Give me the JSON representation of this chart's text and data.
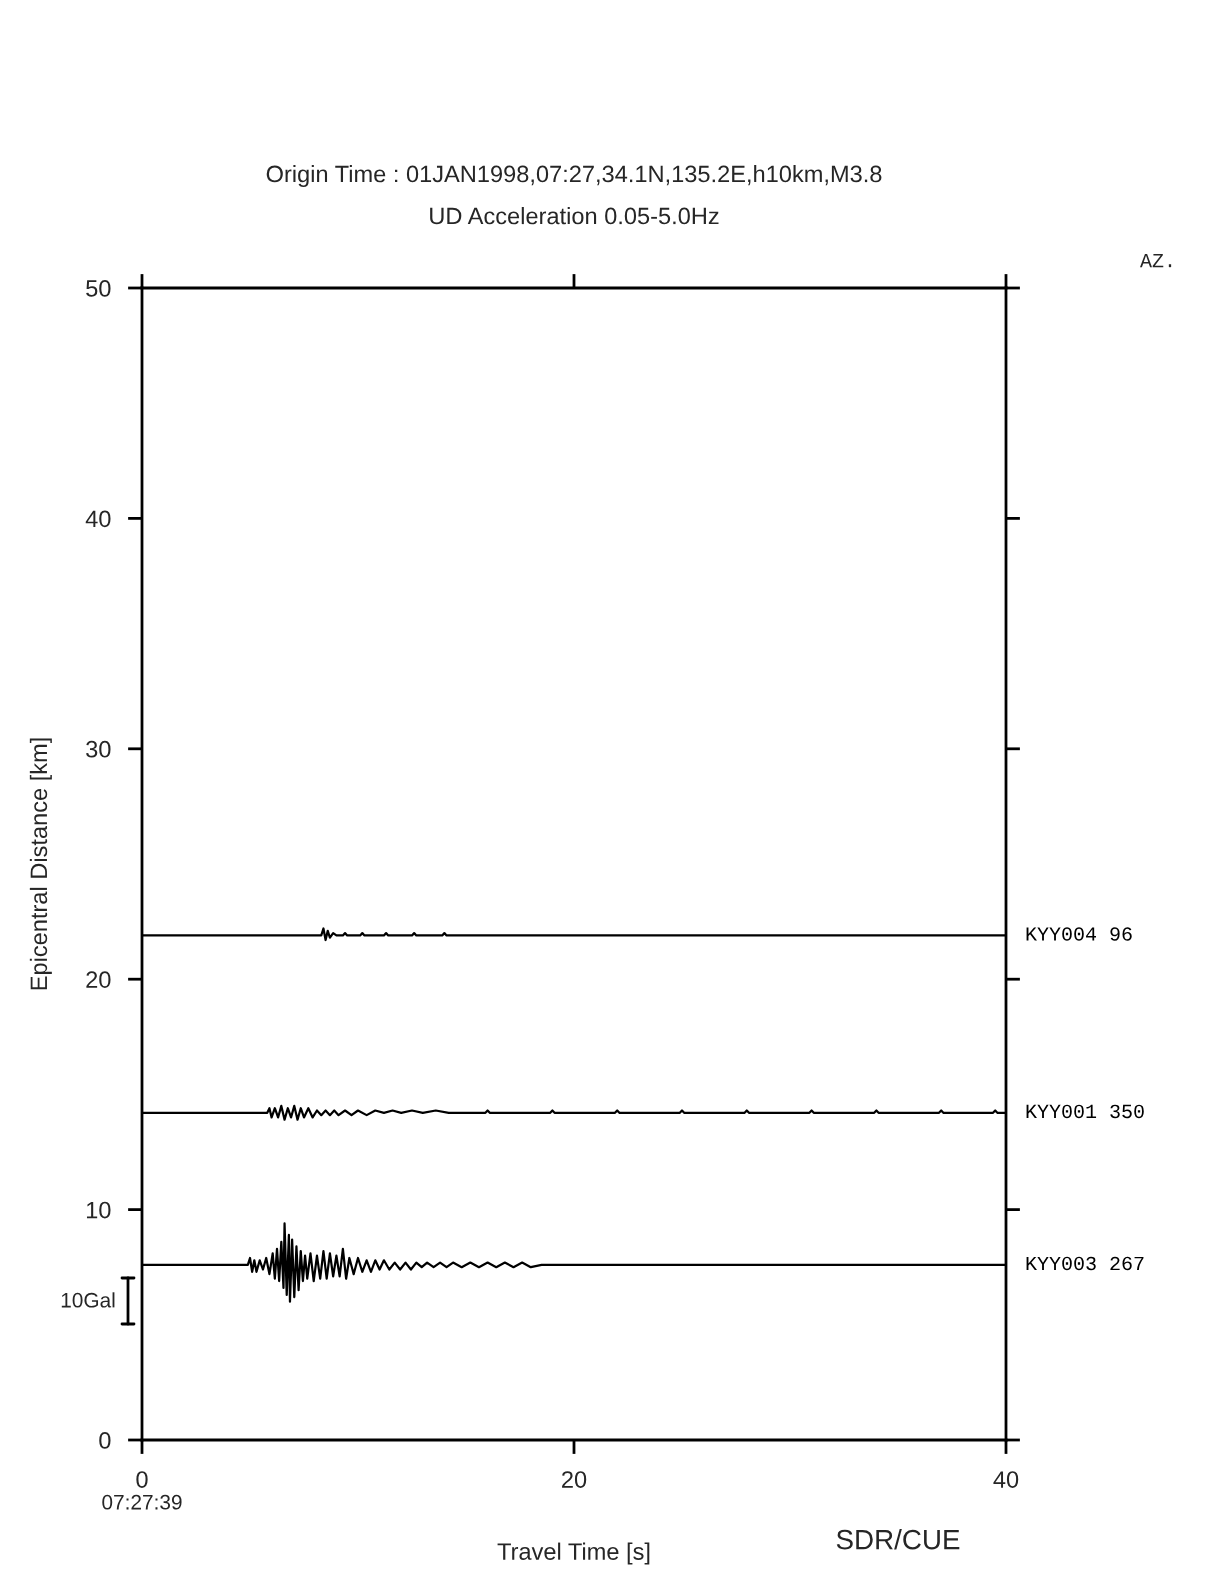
{
  "chart_data": {
    "type": "line",
    "title": "Origin Time : 01JAN1998,07:27,34.1N,135.2E,h10km,M3.8",
    "subtitle": "UD Acceleration 0.05-5.0Hz",
    "xlabel": "Travel Time [s]",
    "ylabel": "Epicentral Distance [km]",
    "xlim": [
      0,
      40
    ],
    "xticks": [
      0,
      20,
      40
    ],
    "ylim": [
      0,
      50
    ],
    "yticks": [
      0,
      10,
      20,
      30,
      40,
      50
    ],
    "annotations": [
      "07:27:39",
      "10Gal",
      "AZ.",
      "SDR/CUE"
    ],
    "series": [
      {
        "name": "KYY004 96",
        "color": "#000000",
        "x": [
          0,
          8.3,
          8.4,
          8.5,
          8.6,
          8.7,
          8.85,
          9.0,
          9.3,
          9.4,
          9.5,
          10.1,
          10.2,
          10.3,
          11.2,
          11.3,
          11.4,
          12.5,
          12.6,
          12.7,
          13.9,
          14.0,
          14.1,
          40
        ],
        "values": [
          21.9,
          21.9,
          22.2,
          21.7,
          22.1,
          21.8,
          22.0,
          21.9,
          21.9,
          22.0,
          21.9,
          21.9,
          22.0,
          21.9,
          21.9,
          22.0,
          21.9,
          21.9,
          22.0,
          21.9,
          21.9,
          22.0,
          21.9,
          21.9
        ]
      },
      {
        "name": "KYY001 350",
        "color": "#000000",
        "x": [
          0,
          5.8,
          5.9,
          6.0,
          6.15,
          6.3,
          6.45,
          6.6,
          6.75,
          6.9,
          7.05,
          7.2,
          7.35,
          7.5,
          7.7,
          7.9,
          8.1,
          8.3,
          8.5,
          8.7,
          8.9,
          9.1,
          9.4,
          9.7,
          10.0,
          10.4,
          10.8,
          11.2,
          11.6,
          12.0,
          12.5,
          13.0,
          13.6,
          14.2,
          15.9,
          16.0,
          16.1,
          18.9,
          19.0,
          19.1,
          21.9,
          22.0,
          22.1,
          24.9,
          25.0,
          25.1,
          27.9,
          28.0,
          28.1,
          30.9,
          31.0,
          31.1,
          33.9,
          34.0,
          34.1,
          36.9,
          37.0,
          37.1,
          39.4,
          39.5,
          39.6,
          40
        ],
        "values": [
          14.2,
          14.2,
          14.4,
          14.0,
          14.4,
          14.0,
          14.5,
          13.9,
          14.4,
          14.0,
          14.5,
          13.9,
          14.4,
          14.0,
          14.4,
          14.0,
          14.3,
          14.1,
          14.3,
          14.1,
          14.3,
          14.1,
          14.3,
          14.1,
          14.3,
          14.1,
          14.3,
          14.2,
          14.3,
          14.2,
          14.3,
          14.2,
          14.3,
          14.2,
          14.2,
          14.3,
          14.2,
          14.2,
          14.3,
          14.2,
          14.2,
          14.3,
          14.2,
          14.2,
          14.3,
          14.2,
          14.2,
          14.3,
          14.2,
          14.2,
          14.3,
          14.2,
          14.2,
          14.3,
          14.2,
          14.2,
          14.3,
          14.2,
          14.2,
          14.3,
          14.2,
          14.2
        ]
      },
      {
        "name": "KYY003 267",
        "color": "#000000",
        "x": [
          0,
          4.9,
          5.0,
          5.1,
          5.2,
          5.3,
          5.45,
          5.6,
          5.75,
          5.9,
          6.05,
          6.15,
          6.25,
          6.35,
          6.45,
          6.55,
          6.6,
          6.7,
          6.8,
          6.85,
          6.95,
          7.05,
          7.15,
          7.25,
          7.35,
          7.45,
          7.55,
          7.65,
          7.8,
          7.95,
          8.1,
          8.25,
          8.4,
          8.55,
          8.7,
          8.85,
          9.0,
          9.15,
          9.3,
          9.45,
          9.6,
          9.8,
          10.0,
          10.2,
          10.4,
          10.6,
          10.8,
          11.0,
          11.2,
          11.45,
          11.7,
          11.95,
          12.2,
          12.45,
          12.7,
          12.95,
          13.2,
          13.5,
          13.8,
          14.1,
          14.4,
          14.8,
          15.2,
          15.6,
          16.0,
          16.4,
          16.8,
          17.2,
          17.6,
          18.0,
          18.5,
          18.6,
          40
        ],
        "values": [
          7.6,
          7.6,
          7.9,
          7.3,
          7.8,
          7.3,
          7.8,
          7.4,
          7.9,
          7.2,
          8.1,
          7.0,
          8.3,
          6.9,
          8.6,
          6.6,
          9.4,
          6.3,
          8.9,
          6.0,
          8.7,
          6.2,
          8.4,
          6.5,
          8.2,
          6.9,
          8.0,
          7.0,
          8.1,
          6.9,
          8.0,
          7.0,
          8.2,
          7.0,
          8.1,
          7.1,
          8.0,
          7.1,
          8.3,
          7.0,
          7.9,
          7.2,
          7.9,
          7.3,
          7.8,
          7.3,
          7.8,
          7.4,
          7.8,
          7.4,
          7.7,
          7.4,
          7.7,
          7.4,
          7.7,
          7.5,
          7.7,
          7.5,
          7.7,
          7.5,
          7.7,
          7.5,
          7.7,
          7.5,
          7.7,
          7.5,
          7.7,
          7.5,
          7.7,
          7.5,
          7.6,
          7.6,
          7.6
        ]
      }
    ]
  }
}
